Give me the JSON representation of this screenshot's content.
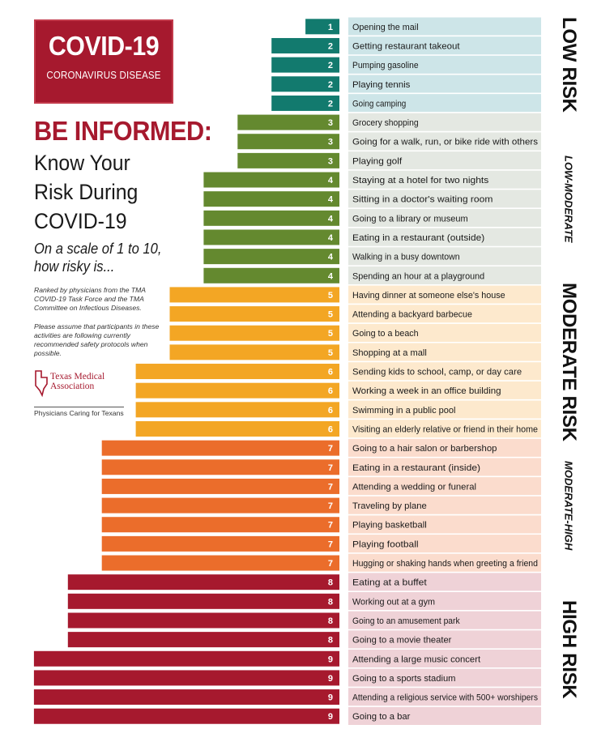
{
  "header": {
    "logo_title": "COVID-19",
    "logo_subtitle": "CORONAVIRUS DISEASE",
    "headline": "BE INFORMED:",
    "subheadline_lines": [
      "Know Your",
      "Risk During",
      "COVID-19"
    ],
    "scale_question_lines": [
      "On a scale of 1 to 10,",
      "how risky is..."
    ],
    "note_ranked": "Ranked by physicians from the TMA COVID-19 Task Force and the TMA Committee on Infectious Diseases.",
    "note_assume": "Please assume that participants in these activities are following currently recommended safety protocols when possible.",
    "org_name_lines": [
      "Texas Medical",
      "Association"
    ],
    "org_tagline": "Physicians Caring for Texans"
  },
  "colors": {
    "bar_1_2": "#127a6e",
    "bar_3_4": "#64892f",
    "bar_5_6": "#f3a624",
    "bar_7": "#eb6d2b",
    "bar_8_9": "#a6192e",
    "band_low": "#cde5e8",
    "band_low_moderate": "#e4e8e2",
    "band_moderate": "#fde9cd",
    "band_moderate_high": "#fbdccd",
    "band_high": "#efd2d7"
  },
  "risk_bands": [
    {
      "name": "LOW RISK",
      "style": "big",
      "row_start": 0,
      "row_end": 4
    },
    {
      "name": "LOW-MODERATE",
      "style": "small",
      "row_start": 5,
      "row_end": 13
    },
    {
      "name": "MODERATE RISK",
      "style": "big",
      "row_start": 14,
      "row_end": 21
    },
    {
      "name": "MODERATE-HIGH",
      "style": "small",
      "row_start": 22,
      "row_end": 28
    },
    {
      "name": "HIGH RISK",
      "style": "big",
      "row_start": 29,
      "row_end": 36
    }
  ],
  "chart_data": {
    "type": "bar",
    "orientation": "horizontal",
    "xlim": [
      0,
      10
    ],
    "categories": [
      "Opening the mail",
      "Getting restaurant takeout",
      "Pumping gasoline",
      "Playing tennis",
      "Going camping",
      "Grocery shopping",
      "Going for a walk, run, or bike ride with others",
      "Playing golf",
      "Staying at a hotel for two nights",
      "Sitting in a doctor's waiting room",
      "Going to a library or museum",
      "Eating in a restaurant (outside)",
      "Walking in a busy downtown",
      "Spending an hour at a playground",
      "Having dinner at someone else's house",
      "Attending a backyard barbecue",
      "Going to a beach",
      "Shopping at a mall",
      "Sending kids to school, camp, or day care",
      "Working a week in an office building",
      "Swimming in a public pool",
      "Visiting an elderly relative or friend in their home",
      "Going to a hair salon or barbershop",
      "Eating in a restaurant (inside)",
      "Attending a wedding or funeral",
      "Traveling by plane",
      "Playing basketball",
      "Playing football",
      "Hugging or shaking hands when greeting a friend",
      "Eating at a buffet",
      "Working out at a gym",
      "Going to an amusement park",
      "Going to a movie theater",
      "Attending a large music concert",
      "Going to a sports stadium",
      "Attending a religious service with 500+ worshipers",
      "Going to a bar"
    ],
    "values": [
      1,
      2,
      2,
      2,
      2,
      3,
      3,
      3,
      4,
      4,
      4,
      4,
      4,
      4,
      5,
      5,
      5,
      5,
      6,
      6,
      6,
      6,
      7,
      7,
      7,
      7,
      7,
      7,
      7,
      8,
      8,
      8,
      8,
      9,
      9,
      9,
      9
    ]
  }
}
